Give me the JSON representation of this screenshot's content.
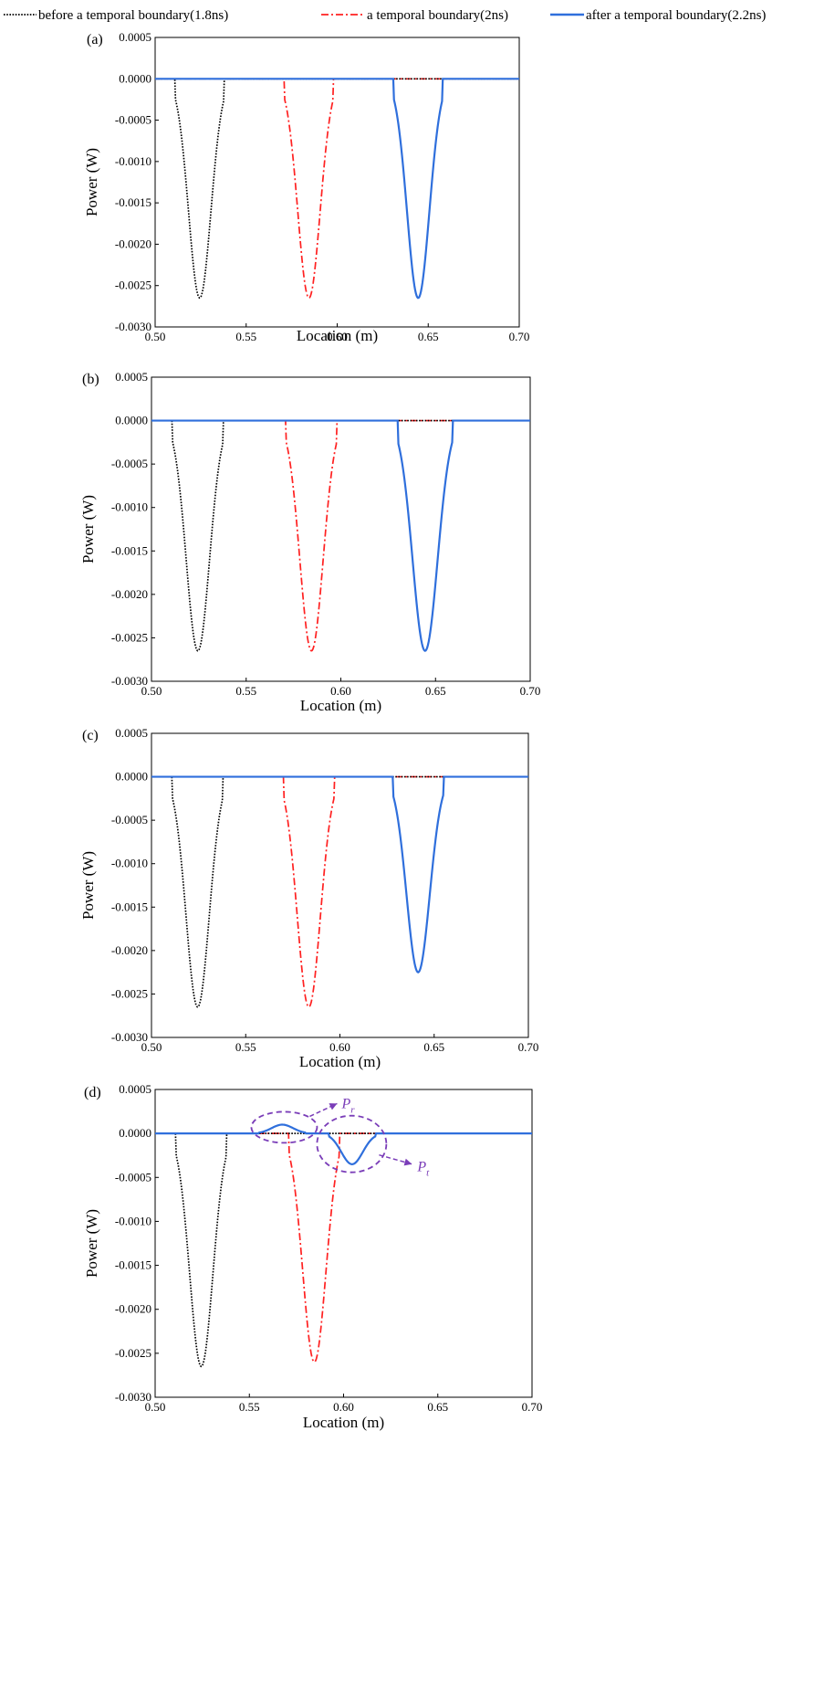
{
  "legend": {
    "items": [
      {
        "label": "before a temporal boundary(1.8ns)",
        "color": "#000000",
        "style": "dotted"
      },
      {
        "label": "a temporal boundary(2ns)",
        "color": "#ff2020",
        "style": "dashdot"
      },
      {
        "label": "after a temporal boundary(2.2ns)",
        "color": "#2f6fdc",
        "style": "solid"
      }
    ]
  },
  "chart_data": [
    {
      "type": "line",
      "panel_label": "(a)",
      "xlabel": "Location  (m)",
      "ylabel": "Power  (W)",
      "xlim": [
        0.5,
        0.7
      ],
      "ylim": [
        -0.003,
        0.0005
      ],
      "xticks": [
        "0.50",
        "0.55",
        "0.60",
        "0.65",
        "0.70"
      ],
      "yticks": [
        "0.0005",
        "0.0000",
        "-0.0005",
        "-0.0010",
        "-0.0015",
        "-0.0020",
        "-0.0025",
        "-0.0030"
      ],
      "series": [
        {
          "name": "before a temporal boundary(1.8ns)",
          "color": "#000000",
          "style": "dotted",
          "center": 0.5245,
          "depth": -0.00265,
          "halfwidth": 0.0135
        },
        {
          "name": "a temporal boundary(2ns)",
          "color": "#ff2020",
          "style": "dashdot",
          "center": 0.5845,
          "depth": -0.00265,
          "halfwidth": 0.0135
        },
        {
          "name": "after a temporal boundary(2.2ns)",
          "color": "#2f6fdc",
          "style": "solid",
          "center": 0.6445,
          "depth": -0.00265,
          "halfwidth": 0.0135
        }
      ]
    },
    {
      "type": "line",
      "panel_label": "(b)",
      "xlabel": "Location  (m)",
      "ylabel": "Power  (W)",
      "xlim": [
        0.5,
        0.7
      ],
      "ylim": [
        -0.003,
        0.0005
      ],
      "xticks": [
        "0.50",
        "0.55",
        "0.60",
        "0.65",
        "0.70"
      ],
      "yticks": [
        "0.0005",
        "0.0000",
        "-0.0005",
        "-0.0010",
        "-0.0015",
        "-0.0020",
        "-0.0025",
        "-0.0030"
      ],
      "series": [
        {
          "name": "before a temporal boundary(1.8ns)",
          "color": "#000000",
          "style": "dotted",
          "center": 0.5245,
          "depth": -0.00265,
          "halfwidth": 0.0135
        },
        {
          "name": "a temporal boundary(2ns)",
          "color": "#ff2020",
          "style": "dashdot",
          "center": 0.5845,
          "depth": -0.00265,
          "halfwidth": 0.0135
        },
        {
          "name": "after a temporal boundary(2.2ns)",
          "color": "#2f6fdc",
          "style": "solid",
          "center": 0.6445,
          "depth": -0.00265,
          "halfwidth": 0.0145
        }
      ]
    },
    {
      "type": "line",
      "panel_label": "(c)",
      "xlabel": "Location  (m)",
      "ylabel": "Power  (W)",
      "xlim": [
        0.5,
        0.7
      ],
      "ylim": [
        -0.003,
        0.0005
      ],
      "xticks": [
        "0.50",
        "0.55",
        "0.60",
        "0.65",
        "0.70"
      ],
      "yticks": [
        "0.0005",
        "0.0000",
        "-0.0005",
        "-0.0010",
        "-0.0015",
        "-0.0020",
        "-0.0025",
        "-0.0030"
      ],
      "series": [
        {
          "name": "before a temporal boundary(1.8ns)",
          "color": "#000000",
          "style": "dotted",
          "center": 0.5245,
          "depth": -0.00265,
          "halfwidth": 0.0135
        },
        {
          "name": "a temporal boundary(2ns)",
          "color": "#ff2020",
          "style": "dashdot",
          "center": 0.5835,
          "depth": -0.00265,
          "halfwidth": 0.0135
        },
        {
          "name": "after a temporal boundary(2.2ns)",
          "color": "#2f6fdc",
          "style": "solid",
          "center": 0.6415,
          "depth": -0.00225,
          "halfwidth": 0.0135
        }
      ]
    },
    {
      "type": "line",
      "panel_label": "(d)",
      "xlabel": "Location  (m)",
      "ylabel": "Power  (W)",
      "xlim": [
        0.5,
        0.7
      ],
      "ylim": [
        -0.003,
        0.0005
      ],
      "xticks": [
        "0.50",
        "0.55",
        "0.60",
        "0.65",
        "0.70"
      ],
      "yticks": [
        "0.0005",
        "0.0000",
        "-0.0005",
        "-0.0010",
        "-0.0015",
        "-0.0020",
        "-0.0025",
        "-0.0030"
      ],
      "series": [
        {
          "name": "before a temporal boundary(1.8ns)",
          "color": "#000000",
          "style": "dotted",
          "center": 0.5245,
          "depth": -0.00265,
          "halfwidth": 0.0135
        },
        {
          "name": "a temporal boundary(2ns)",
          "color": "#ff2020",
          "style": "dashdot",
          "center": 0.5845,
          "depth": -0.0026,
          "halfwidth": 0.0135
        },
        {
          "name": "after a temporal boundary(2.2ns)",
          "color": "#2f6fdc",
          "style": "solid",
          "components": [
            {
              "center": 0.5675,
              "depth": 0.0001,
              "halfwidth": 0.0125
            },
            {
              "center": 0.6045,
              "depth": -0.00035,
              "halfwidth": 0.0125
            }
          ]
        }
      ],
      "annotations": [
        {
          "text": "P",
          "subscript": "r",
          "near_x": 0.569,
          "near_y": 0.0001,
          "color": "#7a3db8"
        },
        {
          "text": "P",
          "subscript": "t",
          "near_x": 0.605,
          "near_y": -0.00035,
          "color": "#7a3db8"
        }
      ]
    }
  ]
}
